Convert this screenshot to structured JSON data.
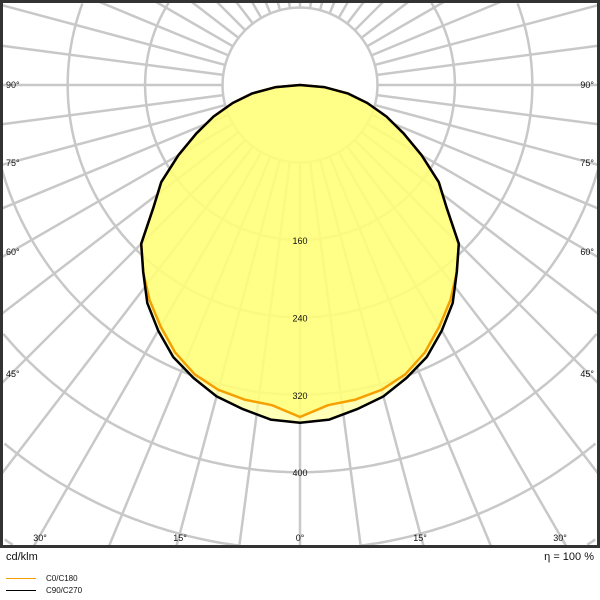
{
  "chart_data": {
    "type": "polar",
    "unit_label": "cd/klm",
    "efficiency_label": "η = 100 %",
    "radial_ticks": [
      80,
      160,
      240,
      320,
      400
    ],
    "radial_tick_labels": [
      "160",
      "240",
      "320",
      "400"
    ],
    "angle_labels_side": [
      "90°",
      "75°",
      "60°",
      "45°"
    ],
    "angle_labels_bottom": [
      "30°",
      "15°",
      "0°",
      "15°",
      "30°"
    ],
    "grid": true,
    "angles": [
      0,
      5,
      10,
      15,
      20,
      25,
      30,
      35,
      40,
      45,
      50,
      55,
      60,
      65,
      70,
      75,
      80,
      85,
      90
    ],
    "series": [
      {
        "name": "C0/C180",
        "color": "#f5a000",
        "values": [
          343,
          332,
          330,
          326,
          318,
          305,
          288,
          271,
          252,
          232,
          198,
          175,
          145,
          118,
          95,
          72,
          50,
          25,
          0
        ]
      },
      {
        "name": "C90/C270",
        "color": "#000000",
        "values": [
          349,
          347,
          340,
          333,
          322,
          310,
          293,
          275,
          252,
          232,
          198,
          175,
          145,
          118,
          95,
          72,
          50,
          25,
          0
        ]
      }
    ],
    "colors": {
      "fill_inner": "#ffff66",
      "fill_outer": "#ffffa0",
      "grid": "#c8c8c8",
      "frame": "#333333"
    }
  }
}
